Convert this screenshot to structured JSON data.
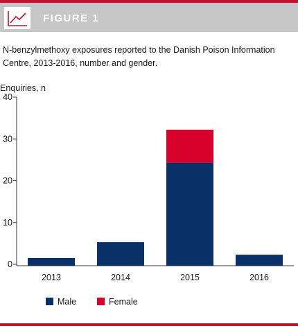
{
  "header": {
    "title": "FIGURE 1",
    "icon": "line-chart-icon",
    "band_color": "#c6c6c6",
    "rule_color": "#c8102e"
  },
  "caption": "N-benzylmethoxy exposures reported to the Danish Poison Information Centre, 2013-2016, number and gender.",
  "chart_data": {
    "type": "bar",
    "stacked": true,
    "categories": [
      "2013",
      "2014",
      "2015",
      "2016"
    ],
    "series": [
      {
        "name": "Male",
        "values": [
          1.5,
          5.3,
          24.3,
          2.3
        ],
        "color": "#0a3068"
      },
      {
        "name": "Female",
        "values": [
          0,
          0,
          7.9,
          0
        ],
        "color": "#d8002c"
      }
    ],
    "ylabel": "Enquiries, n",
    "xlabel": "",
    "ylim": [
      0,
      40
    ],
    "yticks": [
      "0",
      "10",
      "20",
      "30",
      "40"
    ],
    "grid": false,
    "legend_position": "bottom-left"
  }
}
